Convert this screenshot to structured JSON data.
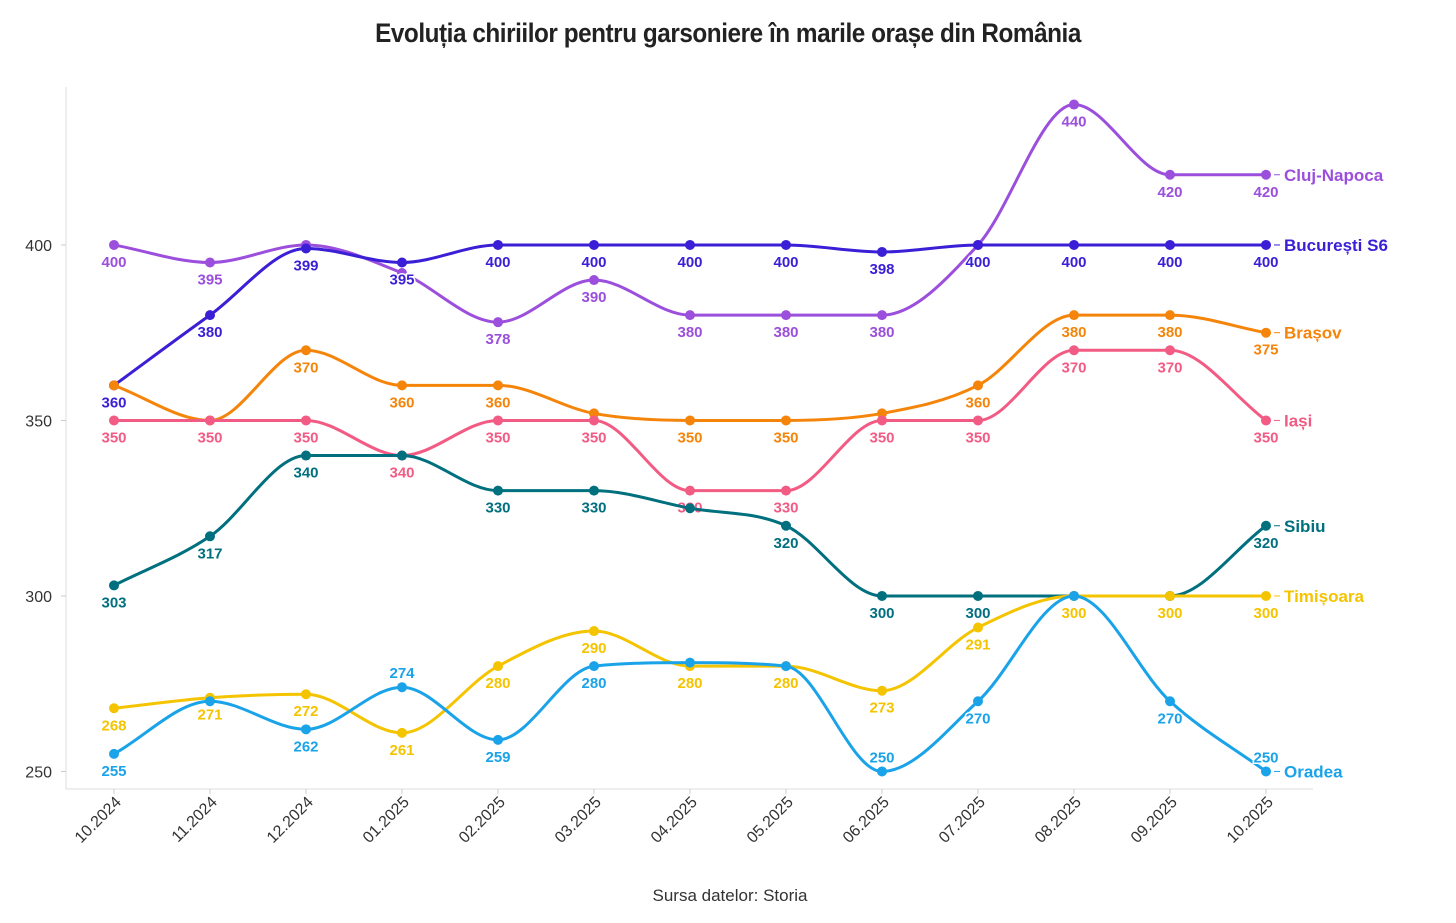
{
  "chart_data": {
    "type": "line",
    "title": "Evoluția chiriilor pentru garsoniere în marile orașe din România",
    "source": "Sursa datelor: Storia",
    "xlabel": "",
    "ylabel": "",
    "ylim": [
      245,
      445
    ],
    "yticks": [
      250,
      300,
      350,
      400
    ],
    "grid": false,
    "legend": "inline-right",
    "categories": [
      "10.2024",
      "11.2024",
      "12.2024",
      "01.2025",
      "02.2025",
      "03.2025",
      "04.2025",
      "05.2025",
      "06.2025",
      "07.2025",
      "08.2025",
      "09.2025",
      "10.2025"
    ],
    "series": [
      {
        "name": "Cluj-Napoca",
        "color": "#9b4fdc",
        "values": [
          400,
          395,
          400,
          392,
          378,
          390,
          380,
          380,
          380,
          400,
          440,
          420,
          420
        ],
        "label_pos": [
          "below",
          "below",
          null,
          null,
          "below",
          "below",
          "below",
          "below",
          "below",
          null,
          "below",
          "below",
          "below"
        ]
      },
      {
        "name": "București S6",
        "color": "#3a1fd6",
        "values": [
          360,
          380,
          399,
          395,
          400,
          400,
          400,
          400,
          398,
          400,
          400,
          400,
          400
        ],
        "label_pos": [
          "below",
          "below",
          "below",
          "below",
          "below",
          "below",
          "below",
          "below",
          "below",
          "below",
          "below",
          "below",
          "below"
        ]
      },
      {
        "name": "Brașov",
        "color": "#f5850a",
        "values": [
          360,
          350,
          370,
          360,
          360,
          352,
          350,
          350,
          352,
          360,
          380,
          380,
          375
        ],
        "label_pos": [
          null,
          null,
          "below",
          "below",
          "below",
          null,
          "below",
          "below",
          null,
          "below",
          "below",
          "below",
          "below"
        ]
      },
      {
        "name": "Iași",
        "color": "#f25c84",
        "values": [
          350,
          350,
          350,
          340,
          350,
          350,
          330,
          330,
          350,
          350,
          370,
          370,
          350
        ],
        "label_pos": [
          "below",
          "below",
          "below",
          "below",
          "below",
          "below",
          "below",
          "below",
          "below",
          "below",
          "below",
          "below",
          "below"
        ]
      },
      {
        "name": "Sibiu",
        "color": "#00707f",
        "values": [
          303,
          317,
          340,
          340,
          330,
          330,
          325,
          320,
          300,
          300,
          300,
          300,
          320
        ],
        "label_pos": [
          "below",
          "below",
          "below",
          null,
          "below",
          "below",
          null,
          "below",
          "below",
          "below",
          null,
          null,
          "below"
        ]
      },
      {
        "name": "Timișoara",
        "color": "#f5c400",
        "values": [
          268,
          271,
          272,
          261,
          280,
          290,
          280,
          280,
          273,
          291,
          300,
          300,
          300
        ],
        "label_pos": [
          "below",
          "below",
          "below",
          "below",
          "below",
          "below",
          "below",
          "below",
          "below",
          "below",
          "below",
          "below",
          "below"
        ]
      },
      {
        "name": "Oradea",
        "color": "#1aa3e8",
        "values": [
          255,
          270,
          262,
          274,
          259,
          280,
          281,
          280,
          250,
          270,
          300,
          270,
          250
        ],
        "label_pos": [
          "below",
          null,
          "below",
          "above",
          "below",
          "below",
          null,
          null,
          "above",
          "below",
          null,
          "below",
          "above"
        ]
      }
    ]
  }
}
